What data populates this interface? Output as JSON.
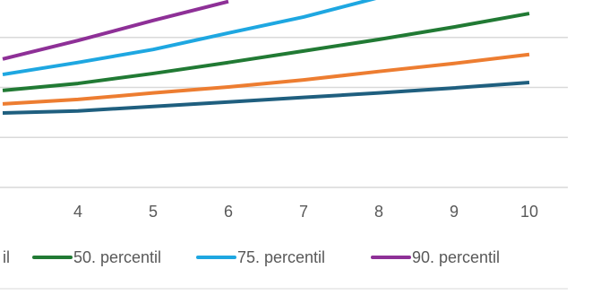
{
  "chart_data": {
    "type": "line",
    "x": [
      3,
      4,
      5,
      6,
      7,
      8,
      9,
      10
    ],
    "xlim": [
      3,
      10.5
    ],
    "xticks": [
      4,
      5,
      6,
      7,
      8,
      9,
      10
    ],
    "ylim": [
      0,
      3.75
    ],
    "yticks": [
      0,
      1,
      2,
      3
    ],
    "grid": true,
    "legend_fragment": "il",
    "series": [
      {
        "color": "#1f5f7f",
        "values": [
          1.49,
          1.53,
          1.62,
          1.71,
          1.8,
          1.89,
          1.99,
          2.1
        ]
      },
      {
        "color": "#ed7d31",
        "values": [
          1.67,
          1.76,
          1.89,
          2.01,
          2.15,
          2.32,
          2.48,
          2.66
        ]
      },
      {
        "name": "50. percentil",
        "color": "#217a34",
        "values": [
          1.94,
          2.08,
          2.28,
          2.5,
          2.73,
          2.96,
          3.21,
          3.48
        ]
      },
      {
        "name": "75. percentil",
        "color": "#1ea7e1",
        "values": [
          2.26,
          2.5,
          2.76,
          3.09,
          3.41,
          3.8,
          null,
          null
        ]
      },
      {
        "name": "90. percentil",
        "color": "#8e3097",
        "values": [
          2.57,
          2.94,
          3.34,
          3.72,
          null,
          null,
          null,
          null
        ]
      }
    ]
  }
}
